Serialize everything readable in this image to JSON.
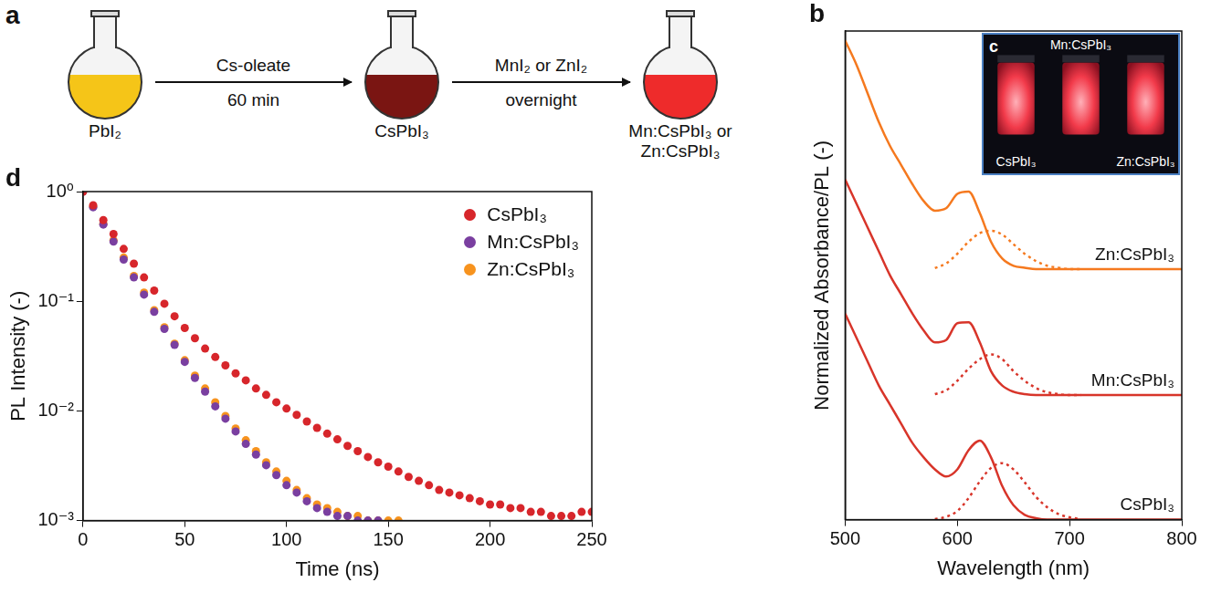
{
  "scheme": {
    "panel": "a",
    "flasks": [
      {
        "label": "PbI₂",
        "color": "#f5c518"
      },
      {
        "label": "CsPbI₃",
        "color": "#7a1512"
      },
      {
        "label": [
          "Mn:CsPbI₃ or",
          "Zn:CsPbI₃"
        ],
        "color": "#ee2b2b"
      }
    ],
    "arrows": [
      {
        "above": "Cs-oleate",
        "below": "60 min"
      },
      {
        "above": "MnI₂ or ZnI₂",
        "below": "overnight"
      }
    ]
  },
  "inset": {
    "panel": "c",
    "vials": [
      "CsPbI₃",
      "Mn:CsPbI₃",
      "Zn:CsPbI₃"
    ]
  },
  "chart_data": [
    {
      "panel": "b",
      "type": "line",
      "x_label": "Wavelength (nm)",
      "y_label": "Normalized Absorbance/PL (-)",
      "x": [
        500,
        510,
        520,
        530,
        540,
        550,
        560,
        570,
        580,
        590,
        600,
        610,
        620,
        630,
        640,
        650,
        660,
        670,
        680,
        690,
        700,
        710,
        720,
        730,
        740,
        750,
        760,
        770,
        780,
        790,
        800
      ],
      "xlim": [
        500,
        800
      ],
      "xticks": [
        500,
        600,
        700,
        800
      ],
      "ylim": [
        0,
        1.02
      ],
      "tick_labels": "x",
      "grid": false,
      "series": [
        {
          "name": "Zn:CsPbI₃",
          "color": "#f5791f",
          "line_style": "solid",
          "values": [
            1.0,
            0.95,
            0.89,
            0.83,
            0.78,
            0.74,
            0.7,
            0.665,
            0.645,
            0.65,
            0.68,
            0.685,
            0.64,
            0.58,
            0.545,
            0.53,
            0.526,
            0.523,
            0.523,
            0.523,
            0.523,
            0.523,
            0.523,
            0.523,
            0.523,
            0.523,
            0.523,
            0.523,
            0.523,
            0.523,
            0.523
          ]
        },
        {
          "name": "Zn:CsPbI₃",
          "color": "#f5791f",
          "line_style": "dotted",
          "values": [
            null,
            null,
            null,
            null,
            null,
            null,
            null,
            null,
            0.525,
            0.535,
            0.555,
            0.58,
            0.598,
            0.603,
            0.595,
            0.575,
            0.555,
            0.54,
            0.53,
            0.526,
            0.523,
            0.523,
            null,
            null,
            null,
            null,
            null,
            null,
            null,
            null,
            null
          ]
        },
        {
          "name": "Mn:CsPbI₃",
          "color": "#d8352a",
          "line_style": "solid",
          "values": [
            0.71,
            0.66,
            0.61,
            0.56,
            0.51,
            0.47,
            0.43,
            0.395,
            0.37,
            0.375,
            0.41,
            0.412,
            0.37,
            0.31,
            0.28,
            0.267,
            0.262,
            0.26,
            0.26,
            0.26,
            0.26,
            0.26,
            0.26,
            0.26,
            0.26,
            0.26,
            0.26,
            0.26,
            0.26,
            0.26,
            0.26
          ]
        },
        {
          "name": "Mn:CsPbI₃",
          "color": "#d8352a",
          "line_style": "dotted",
          "values": [
            null,
            null,
            null,
            null,
            null,
            null,
            null,
            null,
            0.262,
            0.27,
            0.29,
            0.315,
            0.335,
            0.345,
            0.335,
            0.31,
            0.29,
            0.275,
            0.266,
            0.262,
            0.26,
            0.26,
            null,
            null,
            null,
            null,
            null,
            null,
            null,
            null,
            null
          ]
        },
        {
          "name": "CsPbI₃",
          "color": "#d8352a",
          "line_style": "solid",
          "values": [
            0.43,
            0.38,
            0.33,
            0.28,
            0.24,
            0.2,
            0.16,
            0.13,
            0.105,
            0.09,
            0.105,
            0.145,
            0.165,
            0.13,
            0.07,
            0.03,
            0.01,
            0.003,
            0,
            0,
            0,
            0,
            0,
            0,
            0,
            0,
            0,
            0,
            0,
            0,
            0
          ]
        },
        {
          "name": "CsPbI₃",
          "color": "#d8352a",
          "line_style": "dotted",
          "values": [
            null,
            null,
            null,
            null,
            null,
            null,
            null,
            null,
            0.001,
            0.006,
            0.018,
            0.045,
            0.08,
            0.108,
            0.118,
            0.105,
            0.078,
            0.048,
            0.026,
            0.012,
            0.005,
            0.001,
            null,
            null,
            null,
            null,
            null,
            null,
            null,
            null,
            null
          ]
        }
      ]
    },
    {
      "panel": "d",
      "type": "scatter",
      "x_label": "Time (ns)",
      "y_label": "PL Intensity (-)",
      "log": "y",
      "grid": false,
      "legend": "upper right",
      "x": [
        0,
        5,
        10,
        15,
        20,
        25,
        30,
        35,
        40,
        45,
        50,
        55,
        60,
        65,
        70,
        75,
        80,
        85,
        90,
        95,
        100,
        105,
        110,
        115,
        120,
        125,
        130,
        135,
        140,
        145,
        150,
        155,
        160,
        165,
        170,
        175,
        180,
        185,
        190,
        195,
        200,
        205,
        210,
        215,
        220,
        225,
        230,
        235,
        240,
        245,
        250
      ],
      "xlim": [
        0,
        250
      ],
      "xticks": [
        0,
        50,
        100,
        150,
        200,
        250
      ],
      "ylim": [
        0.001,
        1
      ],
      "yticks": [
        {
          "value": 1,
          "label": "10⁰"
        },
        {
          "value": 0.1,
          "label": "10⁻¹"
        },
        {
          "value": 0.01,
          "label": "10⁻²"
        },
        {
          "value": 0.001,
          "label": "10⁻³"
        }
      ],
      "series": [
        {
          "name": "CsPbI₃",
          "color": "#d7262b",
          "marker": "circle",
          "values": [
            1.0,
            0.75,
            0.55,
            0.41,
            0.3,
            0.22,
            0.165,
            0.125,
            0.095,
            0.073,
            0.057,
            0.046,
            0.037,
            0.031,
            0.026,
            0.022,
            0.019,
            0.016,
            0.014,
            0.012,
            0.0105,
            0.0092,
            0.008,
            0.007,
            0.0062,
            0.0055,
            0.0048,
            0.0043,
            0.0038,
            0.0034,
            0.0031,
            0.0028,
            0.0025,
            0.0023,
            0.0021,
            0.0019,
            0.0018,
            0.0017,
            0.0016,
            0.0015,
            0.0014,
            0.0014,
            0.0013,
            0.0013,
            0.0012,
            0.0012,
            0.0011,
            0.0011,
            0.0011,
            0.0012,
            0.0012
          ]
        },
        {
          "name": "Mn:CsPbI₃",
          "color": "#7a3fa0",
          "marker": "circle",
          "values": [
            1.0,
            0.72,
            0.5,
            0.35,
            0.24,
            0.165,
            0.115,
            0.08,
            0.056,
            0.04,
            0.028,
            0.02,
            0.015,
            0.011,
            0.0085,
            0.0065,
            0.005,
            0.004,
            0.0032,
            0.0026,
            0.0021,
            0.0018,
            0.0015,
            0.0013,
            0.0012,
            0.0011,
            0.0011,
            0.001,
            0.001,
            0.001,
            null,
            null,
            null,
            null,
            null,
            null,
            null,
            null,
            null,
            null,
            null,
            null,
            null,
            null,
            null,
            null,
            null,
            null,
            null,
            null,
            null
          ]
        },
        {
          "name": "Zn:CsPbI₃",
          "color": "#f7931e",
          "marker": "circle",
          "values": [
            1.0,
            0.73,
            0.51,
            0.36,
            0.25,
            0.17,
            0.12,
            0.083,
            0.058,
            0.041,
            0.029,
            0.021,
            0.016,
            0.012,
            0.009,
            0.0069,
            0.0054,
            0.0043,
            0.0034,
            0.0028,
            0.0023,
            0.0019,
            0.0016,
            0.0014,
            0.0013,
            0.0012,
            0.0011,
            0.0011,
            0.001,
            0.001,
            0.001,
            0.001,
            null,
            null,
            null,
            null,
            null,
            null,
            null,
            null,
            null,
            null,
            null,
            null,
            null,
            null,
            null,
            null,
            null,
            null,
            null
          ]
        }
      ]
    }
  ]
}
